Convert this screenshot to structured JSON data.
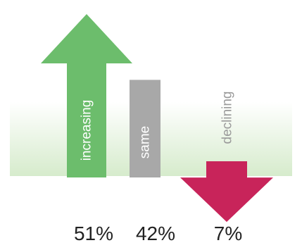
{
  "chart_data": {
    "type": "bar",
    "title": "",
    "categories": [
      "increasing",
      "same",
      "declining"
    ],
    "values": [
      51,
      42,
      7
    ],
    "value_labels": [
      "51%",
      "42%",
      "7%"
    ],
    "unit": "%",
    "shapes": [
      "arrow-up",
      "bar",
      "arrow-down"
    ],
    "colors": {
      "increasing": "#6cbd6c",
      "same": "#a8a8a8",
      "declining": "#c8245a",
      "declining_label": "#9a9a9a",
      "band_top": "#ffffff",
      "band_bottom": "#d6ebcc"
    },
    "legend": "none",
    "grid": false
  }
}
